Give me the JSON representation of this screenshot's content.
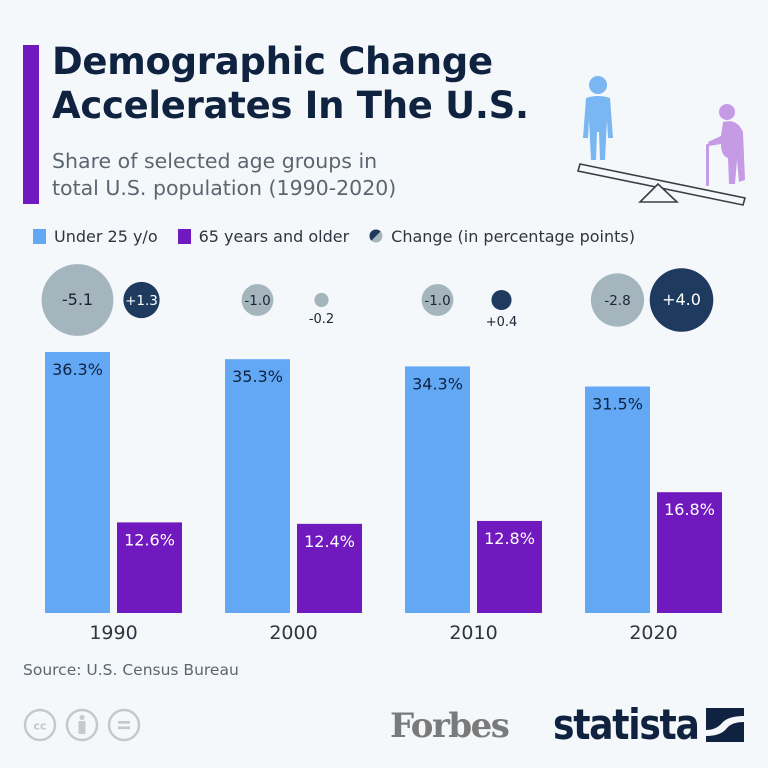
{
  "header": {
    "title_line1": "Demographic Change",
    "title_line2": "Accelerates In The U.S.",
    "subtitle_line1": "Share of selected age groups in",
    "subtitle_line2": "total U.S. population (1990-2020)"
  },
  "colors": {
    "accent": "#7019be",
    "under25": "#62a8f5",
    "over65": "#7019be",
    "change_negative": "#a5b5bd",
    "change_positive": "#1e3a5f",
    "title": "#0f2340"
  },
  "legend": [
    {
      "label": "Under 25 y/o",
      "icon": "square-swatch-blue"
    },
    {
      "label": "65 years and older",
      "icon": "square-swatch-purple"
    },
    {
      "label": "Change (in percentage points)",
      "icon": "half-circle-icon"
    }
  ],
  "chart_data": {
    "type": "bar",
    "title": "Demographic Change Accelerates In The U.S.",
    "subtitle": "Share of selected age groups in total U.S. population (1990-2020)",
    "xlabel": "",
    "ylabel": "",
    "ylim": [
      0,
      36.3
    ],
    "grid": false,
    "legend_position": "top",
    "categories": [
      "1990",
      "2000",
      "2010",
      "2020"
    ],
    "series": [
      {
        "name": "Under 25 y/o",
        "values": [
          36.3,
          35.3,
          34.3,
          31.5
        ],
        "labels": [
          "36.3%",
          "35.3%",
          "34.3%",
          "31.5%"
        ]
      },
      {
        "name": "65 years and older",
        "values": [
          12.6,
          12.4,
          12.8,
          16.8
        ],
        "labels": [
          "12.6%",
          "12.4%",
          "12.8%",
          "16.8%"
        ]
      }
    ],
    "change_points": {
      "name": "Change (in percentage points)",
      "under25": {
        "values": [
          -5.1,
          -1.0,
          -1.0,
          -2.8
        ],
        "labels": [
          "-5.1",
          "-1.0",
          "-1.0",
          "-2.8"
        ]
      },
      "over65": {
        "values": [
          1.3,
          -0.2,
          0.4,
          4.0
        ],
        "labels": [
          "+1.3",
          "-0.2",
          "+0.4",
          "+4.0"
        ]
      }
    }
  },
  "footer": {
    "source": "Source: U.S. Census Bureau",
    "license_icons": [
      "cc-icon",
      "attribution-icon",
      "no-derivatives-icon"
    ],
    "forbes_logo": "Forbes",
    "statista_logo": "statista"
  }
}
